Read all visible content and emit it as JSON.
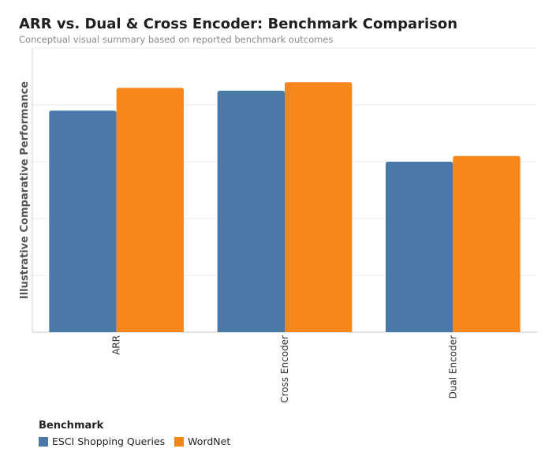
{
  "title": "ARR vs. Dual & Cross Encoder: Benchmark Comparison",
  "subtitle": "Conceptual visual summary based on reported benchmark outcomes",
  "chart_data": {
    "type": "bar",
    "ylabel": "Illustrative Comparative Performance",
    "xlabel": "",
    "ylim": [
      0,
      100
    ],
    "grid": true,
    "y_tick_labels_visible": false,
    "categories": [
      "ARR",
      "Cross Encoder",
      "Dual Encoder"
    ],
    "series": [
      {
        "name": "ESCI Shopping Queries",
        "color": "#4a78a8",
        "values": [
          78,
          85,
          60
        ]
      },
      {
        "name": "WordNet",
        "color": "#f5861a",
        "values": [
          86,
          88,
          62
        ]
      }
    ],
    "legend": {
      "title": "Benchmark",
      "placement": "bottom-left"
    }
  }
}
